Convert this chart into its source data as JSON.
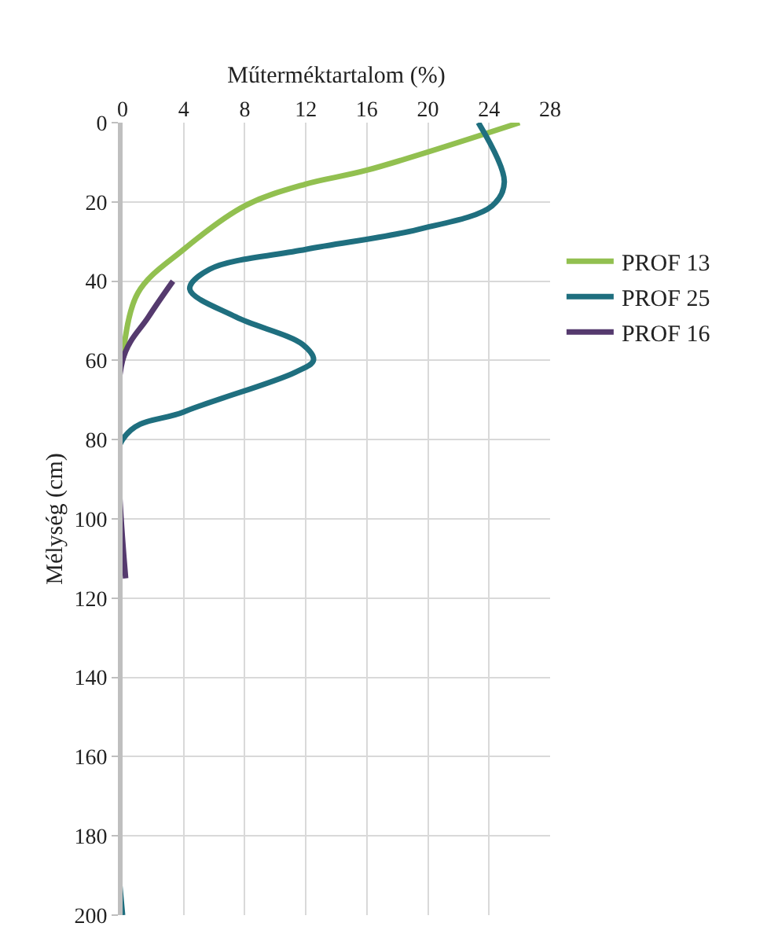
{
  "chart_data": {
    "type": "line",
    "xlabel": "Műterméktartalom (%)",
    "ylabel": "Mélység (cm)",
    "xlim": [
      0,
      28
    ],
    "xticks": [
      0,
      4,
      8,
      12,
      16,
      20,
      24,
      28
    ],
    "ylim": [
      200,
      0
    ],
    "yticks": [
      0,
      20,
      40,
      60,
      80,
      100,
      120,
      140,
      160,
      180,
      200
    ],
    "grid": true,
    "legend": "right",
    "marker": "none",
    "line_style": "solid",
    "series": [
      {
        "name": "PROF 13",
        "color": "#92c050",
        "x": [
          26,
          16,
          12,
          8,
          4,
          1,
          0
        ],
        "values": [
          0,
          12,
          15.5,
          21,
          32,
          43,
          60
        ]
      },
      {
        "name": "PROF 25",
        "color": "#1f6f7f",
        "x": [
          23.3,
          25,
          24.2,
          19.3,
          12,
          5.7,
          4.4,
          7.4,
          11.8,
          12.5,
          11.3,
          4,
          0,
          0
        ],
        "values": [
          0,
          15,
          21,
          27,
          32,
          37,
          42,
          49,
          56,
          60,
          63,
          73,
          80,
          200
        ]
      },
      {
        "name": "PROF 16",
        "color": "#553a6e",
        "x": [
          3.3,
          1.7,
          0,
          0.2
        ],
        "values": [
          40,
          49,
          60,
          115
        ]
      }
    ]
  }
}
